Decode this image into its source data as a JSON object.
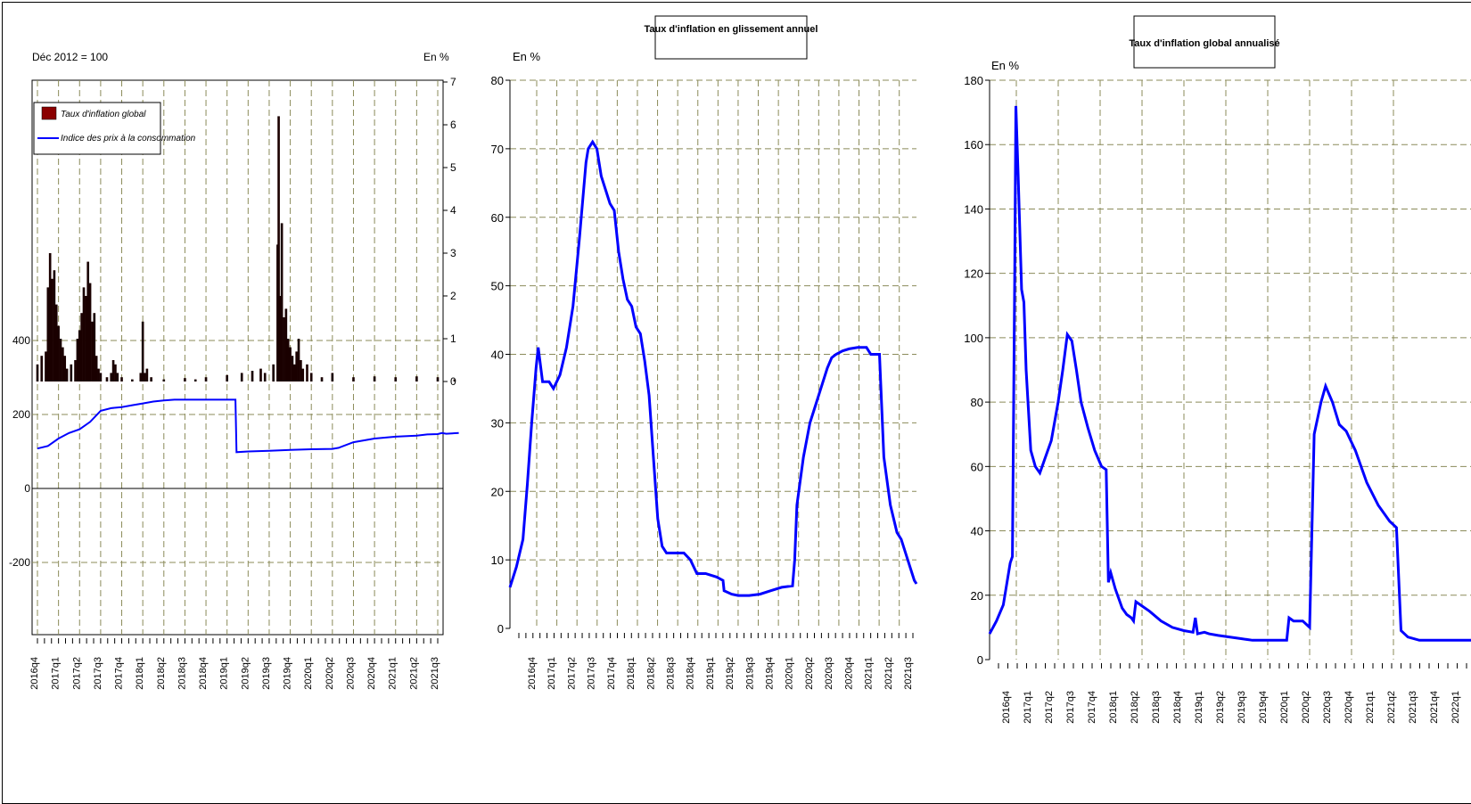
{
  "chart_data": [
    {
      "type": "bar+line",
      "title": "",
      "left_axis_label": "Déc 2012 = 100",
      "right_axis_label": "En %",
      "left_ylim": [
        -400,
        400
      ],
      "left_ticks": [
        "-200",
        "0",
        "200",
        "400"
      ],
      "right_ylim": [
        0,
        7
      ],
      "right_ticks": [
        "0",
        "1",
        "2",
        "3",
        "4",
        "5",
        "6",
        "7"
      ],
      "legend": [
        "Taux d'inflation global",
        "Indice des prix à la consommation"
      ],
      "legend_position": "top-left",
      "colors": {
        "bars": "#1a0000",
        "legend_bar": "#8b0000",
        "line": "#0000ff",
        "grid": "#8b8b5a"
      },
      "x_labels": [
        "2016q4",
        "2017q1",
        "2017q2",
        "2017q3",
        "2017q4",
        "2018q1",
        "2018q2",
        "2018q3",
        "2018q4",
        "2019q1",
        "2019q2",
        "2019q3",
        "2019q4",
        "2020q1",
        "2020q2",
        "2020q3",
        "2020q4",
        "2021q1",
        "2021q2",
        "2021q3"
      ],
      "bar_series": {
        "name": "Taux d'inflation global",
        "points": [
          [
            0,
            0.4
          ],
          [
            0.2,
            0.6
          ],
          [
            0.4,
            0.7
          ],
          [
            0.5,
            2.2
          ],
          [
            0.6,
            3.0
          ],
          [
            0.7,
            2.4
          ],
          [
            0.8,
            2.6
          ],
          [
            0.9,
            1.8
          ],
          [
            1.0,
            1.3
          ],
          [
            1.1,
            1.0
          ],
          [
            1.2,
            0.8
          ],
          [
            1.3,
            0.6
          ],
          [
            1.4,
            0.3
          ],
          [
            1.6,
            0.4
          ],
          [
            1.8,
            0.5
          ],
          [
            1.9,
            1.0
          ],
          [
            2.0,
            1.2
          ],
          [
            2.1,
            1.6
          ],
          [
            2.2,
            2.2
          ],
          [
            2.3,
            2.0
          ],
          [
            2.4,
            2.8
          ],
          [
            2.5,
            2.3
          ],
          [
            2.6,
            1.4
          ],
          [
            2.7,
            1.6
          ],
          [
            2.8,
            0.6
          ],
          [
            2.9,
            0.3
          ],
          [
            3.0,
            0.2
          ],
          [
            3.3,
            0.1
          ],
          [
            3.5,
            0.2
          ],
          [
            3.6,
            0.5
          ],
          [
            3.7,
            0.4
          ],
          [
            3.8,
            0.2
          ],
          [
            4.0,
            0.1
          ],
          [
            4.5,
            0.05
          ],
          [
            4.9,
            0.2
          ],
          [
            5.0,
            1.4
          ],
          [
            5.1,
            0.2
          ],
          [
            5.2,
            0.3
          ],
          [
            5.4,
            0.1
          ],
          [
            6.0,
            0.05
          ],
          [
            7.0,
            0.08
          ],
          [
            7.5,
            0.05
          ],
          [
            8.0,
            0.1
          ],
          [
            9.0,
            0.15
          ],
          [
            9.7,
            0.2
          ],
          [
            10.2,
            0.25
          ],
          [
            10.6,
            0.3
          ],
          [
            10.8,
            0.2
          ],
          [
            11.2,
            0.4
          ],
          [
            11.4,
            3.2
          ],
          [
            11.45,
            6.2
          ],
          [
            11.5,
            2.0
          ],
          [
            11.6,
            3.7
          ],
          [
            11.7,
            1.5
          ],
          [
            11.8,
            1.7
          ],
          [
            11.9,
            1.0
          ],
          [
            12.0,
            0.8
          ],
          [
            12.1,
            0.6
          ],
          [
            12.2,
            0.4
          ],
          [
            12.3,
            0.7
          ],
          [
            12.4,
            1.0
          ],
          [
            12.5,
            0.5
          ],
          [
            12.6,
            0.3
          ],
          [
            12.8,
            0.4
          ],
          [
            13.0,
            0.2
          ],
          [
            13.5,
            0.1
          ],
          [
            14.0,
            0.2
          ],
          [
            15.0,
            0.1
          ],
          [
            16.0,
            0.12
          ],
          [
            17.0,
            0.1
          ],
          [
            18.0,
            0.12
          ],
          [
            19.0,
            0.1
          ],
          [
            19.8,
            0.05
          ]
        ]
      },
      "line_series": {
        "name": "Indice des prix à la consommation",
        "points": [
          [
            0,
            108
          ],
          [
            0.5,
            115
          ],
          [
            1,
            135
          ],
          [
            1.5,
            150
          ],
          [
            2,
            160
          ],
          [
            2.5,
            180
          ],
          [
            3,
            210
          ],
          [
            3.5,
            217
          ],
          [
            4,
            220
          ],
          [
            4.5,
            225
          ],
          [
            5,
            230
          ],
          [
            5.5,
            235
          ],
          [
            6,
            238
          ],
          [
            6.5,
            240
          ],
          [
            7,
            240
          ],
          [
            7.4,
            240
          ],
          [
            9.4,
            240
          ],
          [
            9.45,
            98
          ],
          [
            10,
            100
          ],
          [
            11,
            102
          ],
          [
            12,
            104
          ],
          [
            13,
            106
          ],
          [
            14,
            107
          ],
          [
            14.3,
            110
          ],
          [
            15,
            125
          ],
          [
            16,
            135
          ],
          [
            17,
            140
          ],
          [
            18,
            143
          ],
          [
            18.5,
            146
          ],
          [
            19,
            147
          ],
          [
            19.2,
            150
          ],
          [
            19.4,
            148
          ],
          [
            20,
            150
          ]
        ]
      }
    },
    {
      "type": "line",
      "title": "Taux d'inflation en glissement annuel",
      "ylabel": "En %",
      "ylim": [
        0,
        80
      ],
      "y_ticks": [
        "0",
        "10",
        "20",
        "30",
        "40",
        "50",
        "60",
        "70",
        "80"
      ],
      "colors": {
        "line": "#0000ff",
        "grid": "#8b8b5a"
      },
      "x_labels": [
        "2016q4",
        "2017q1",
        "2017q2",
        "2017q3",
        "2017q4",
        "2018q1",
        "2018q2",
        "2018q3",
        "2018q4",
        "2019q1",
        "2019q2",
        "2019q3",
        "2019q4",
        "2020q1",
        "2020q2",
        "2020q3",
        "2020q4",
        "2021q1",
        "2021q2",
        "2021q3"
      ],
      "series": [
        {
          "name": "",
          "points": [
            [
              0,
              6
            ],
            [
              0.3,
              9
            ],
            [
              0.6,
              13
            ],
            [
              0.8,
              21
            ],
            [
              1.0,
              30
            ],
            [
              1.2,
              38
            ],
            [
              1.3,
              41
            ],
            [
              1.5,
              36
            ],
            [
              1.8,
              36
            ],
            [
              2.0,
              35
            ],
            [
              2.3,
              37
            ],
            [
              2.6,
              41
            ],
            [
              2.9,
              47
            ],
            [
              3.2,
              57
            ],
            [
              3.5,
              68
            ],
            [
              3.6,
              70
            ],
            [
              3.8,
              71
            ],
            [
              4.0,
              70
            ],
            [
              4.2,
              66
            ],
            [
              4.4,
              64
            ],
            [
              4.6,
              62
            ],
            [
              4.8,
              61
            ],
            [
              5.0,
              55
            ],
            [
              5.2,
              51
            ],
            [
              5.4,
              48
            ],
            [
              5.6,
              47
            ],
            [
              5.8,
              44
            ],
            [
              6.0,
              43
            ],
            [
              6.2,
              39
            ],
            [
              6.4,
              34
            ],
            [
              6.6,
              25
            ],
            [
              6.8,
              16
            ],
            [
              7.0,
              12
            ],
            [
              7.2,
              11
            ],
            [
              7.5,
              11
            ],
            [
              8.0,
              11
            ],
            [
              8.3,
              10
            ],
            [
              8.6,
              8
            ],
            [
              9.0,
              8
            ],
            [
              9.5,
              7.5
            ],
            [
              9.8,
              7
            ],
            [
              9.85,
              5.5
            ],
            [
              10.2,
              5
            ],
            [
              10.5,
              4.8
            ],
            [
              11.0,
              4.8
            ],
            [
              11.5,
              5.0
            ],
            [
              12.0,
              5.5
            ],
            [
              12.5,
              6
            ],
            [
              13.0,
              6.2
            ],
            [
              13.1,
              10
            ],
            [
              13.2,
              18
            ],
            [
              13.5,
              25
            ],
            [
              13.8,
              30
            ],
            [
              14.0,
              32
            ],
            [
              14.3,
              35
            ],
            [
              14.6,
              38
            ],
            [
              14.8,
              39.5
            ],
            [
              15.0,
              40
            ],
            [
              15.3,
              40.5
            ],
            [
              15.6,
              40.8
            ],
            [
              16.0,
              41
            ],
            [
              16.4,
              41
            ],
            [
              16.6,
              40
            ],
            [
              17.0,
              40
            ],
            [
              17.2,
              25
            ],
            [
              17.5,
              18
            ],
            [
              17.8,
              14
            ],
            [
              18.0,
              13
            ],
            [
              18.3,
              10
            ],
            [
              18.6,
              7
            ],
            [
              18.7,
              6.5
            ]
          ]
        }
      ]
    },
    {
      "type": "line",
      "title": "Taux d'inflation global annualisé",
      "ylabel": "En %",
      "ylim": [
        0,
        180
      ],
      "y_ticks": [
        "0",
        "20",
        "40",
        "60",
        "80",
        "100",
        "120",
        "140",
        "160",
        "180"
      ],
      "colors": {
        "line": "#0000ff",
        "grid": "#8b8b5a"
      },
      "x_labels": [
        "2016q4",
        "2017q1",
        "2017q2",
        "2017q3",
        "2017q4",
        "2018q1",
        "2018q2",
        "2018q3",
        "2018q4",
        "2019q1",
        "2019q2",
        "2019q3",
        "2019q4",
        "2020q1",
        "2020q2",
        "2020q3",
        "2020q4",
        "2021q1",
        "2021q2",
        "2021q3",
        "2021q4",
        "2022q1"
      ],
      "series": [
        {
          "name": "",
          "points": [
            [
              0,
              8
            ],
            [
              0.3,
              12
            ],
            [
              0.6,
              17
            ],
            [
              0.9,
              30
            ],
            [
              1.0,
              32
            ],
            [
              1.1,
              120
            ],
            [
              1.15,
              172
            ],
            [
              1.25,
              150
            ],
            [
              1.4,
              115
            ],
            [
              1.5,
              111
            ],
            [
              1.6,
              90
            ],
            [
              1.8,
              65
            ],
            [
              2.0,
              60
            ],
            [
              2.2,
              58
            ],
            [
              2.4,
              62
            ],
            [
              2.7,
              68
            ],
            [
              3.0,
              80
            ],
            [
              3.2,
              90
            ],
            [
              3.4,
              101
            ],
            [
              3.6,
              99
            ],
            [
              3.8,
              90
            ],
            [
              4.0,
              80
            ],
            [
              4.3,
              72
            ],
            [
              4.6,
              65
            ],
            [
              4.9,
              60
            ],
            [
              5.1,
              59
            ],
            [
              5.2,
              24
            ],
            [
              5.3,
              27
            ],
            [
              5.5,
              22
            ],
            [
              5.8,
              16
            ],
            [
              6.0,
              14
            ],
            [
              6.2,
              13
            ],
            [
              6.3,
              12
            ],
            [
              6.4,
              18
            ],
            [
              6.6,
              17
            ],
            [
              7.0,
              15
            ],
            [
              7.5,
              12
            ],
            [
              8.0,
              10
            ],
            [
              8.5,
              9
            ],
            [
              8.9,
              8.5
            ],
            [
              9.0,
              13
            ],
            [
              9.1,
              8
            ],
            [
              9.4,
              8.5
            ],
            [
              9.6,
              8
            ],
            [
              10.0,
              7.5
            ],
            [
              11.0,
              6.5
            ],
            [
              11.5,
              6
            ],
            [
              12.0,
              6
            ],
            [
              12.5,
              6
            ],
            [
              13.0,
              6
            ],
            [
              13.1,
              13
            ],
            [
              13.3,
              12
            ],
            [
              13.7,
              12
            ],
            [
              14.0,
              10
            ],
            [
              14.2,
              70
            ],
            [
              14.5,
              80
            ],
            [
              14.7,
              85
            ],
            [
              15.0,
              80
            ],
            [
              15.3,
              73
            ],
            [
              15.6,
              71
            ],
            [
              16.0,
              65
            ],
            [
              16.5,
              55
            ],
            [
              17.0,
              48
            ],
            [
              17.5,
              43
            ],
            [
              17.8,
              41
            ],
            [
              18.0,
              9
            ],
            [
              18.3,
              7
            ],
            [
              18.8,
              6
            ],
            [
              19.5,
              6
            ],
            [
              20.5,
              6
            ],
            [
              21.5,
              6
            ]
          ]
        }
      ]
    }
  ]
}
